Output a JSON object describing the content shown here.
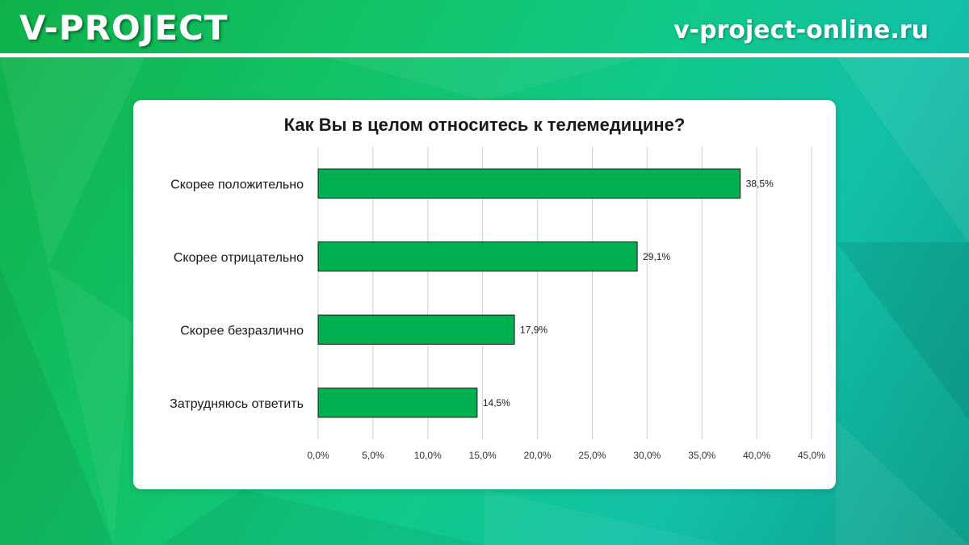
{
  "header": {
    "logo": "V-PROJECT",
    "site": "v-project-online.ru"
  },
  "colors": {
    "bar_fill": "#00b050",
    "bar_stroke": "#1a1a1a",
    "grid": "#d0d0d0",
    "accent": "#ffffff"
  },
  "chart_data": {
    "type": "bar",
    "orientation": "horizontal",
    "title": "Как Вы в целом относитесь к телемедицине?",
    "categories": [
      "Скорее положительно",
      "Скорее отрицательно",
      "Скорее безразлично",
      "Затрудняюсь ответить"
    ],
    "values": [
      38.5,
      29.1,
      17.9,
      14.5
    ],
    "value_labels": [
      "38,5%",
      "29,1%",
      "17,9%",
      "14,5%"
    ],
    "xlim": [
      0,
      45
    ],
    "xticks": [
      0,
      5,
      10,
      15,
      20,
      25,
      30,
      35,
      40,
      45
    ],
    "xtick_labels": [
      "0,0%",
      "5,0%",
      "10,0%",
      "15,0%",
      "20,0%",
      "25,0%",
      "30,0%",
      "35,0%",
      "40,0%",
      "45,0%"
    ],
    "grid": true,
    "legend": "none"
  }
}
